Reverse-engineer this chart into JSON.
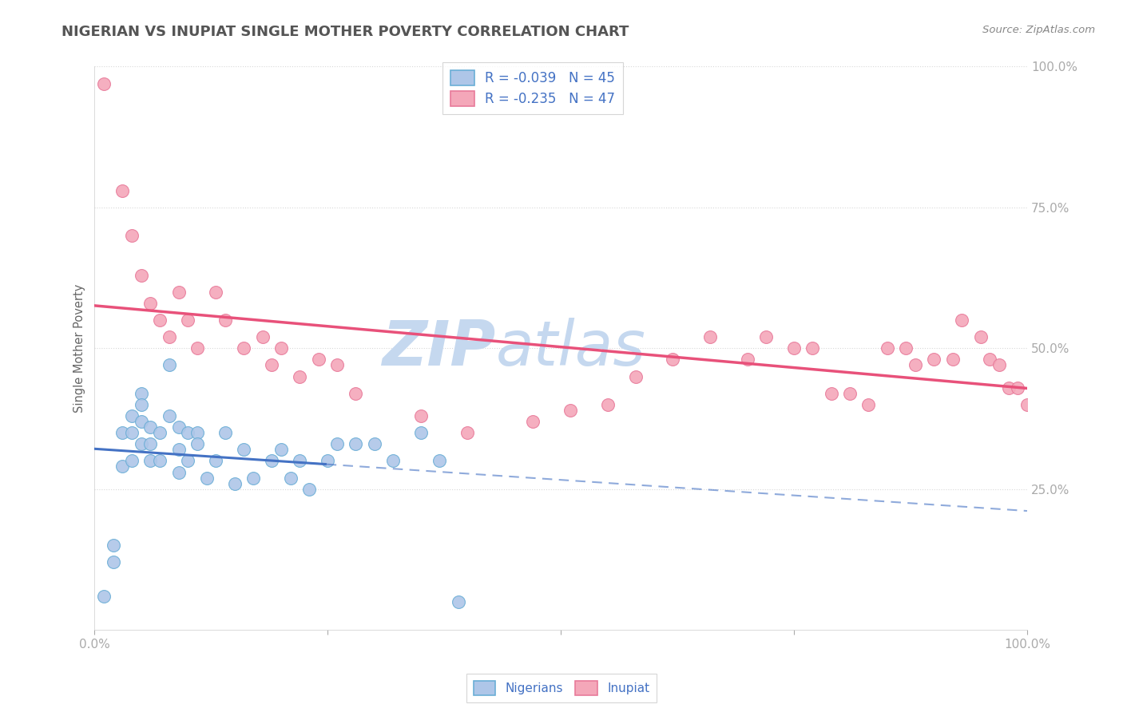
{
  "title": "NIGERIAN VS INUPIAT SINGLE MOTHER POVERTY CORRELATION CHART",
  "source": "Source: ZipAtlas.com",
  "ylabel": "Single Mother Poverty",
  "legend_r_nigerian": "-0.039",
  "legend_n_nigerian": "45",
  "legend_r_inupiat": "-0.235",
  "legend_n_inupiat": "47",
  "nigerian_color": "#aec6e8",
  "inupiat_color": "#f4a7b9",
  "nigerian_edge": "#6aaed6",
  "inupiat_edge": "#e87a9a",
  "trend_nigerian_color": "#4472c4",
  "trend_inupiat_color": "#e8517a",
  "background_color": "#ffffff",
  "grid_color": "#d8d8d8",
  "watermark_zip": "ZIP",
  "watermark_atlas": "atlas",
  "watermark_color_zip": "#c5d8ef",
  "watermark_color_atlas": "#c5d8ef",
  "title_color": "#555555",
  "axis_label_color": "#4472c4",
  "source_color": "#888888",
  "ylabel_color": "#666666",
  "nigerian_x": [
    1,
    2,
    2,
    3,
    3,
    4,
    4,
    4,
    5,
    5,
    5,
    5,
    6,
    6,
    6,
    7,
    7,
    8,
    8,
    9,
    9,
    9,
    10,
    10,
    11,
    11,
    12,
    13,
    14,
    15,
    16,
    17,
    19,
    20,
    21,
    22,
    23,
    25,
    26,
    28,
    30,
    32,
    35,
    37,
    39
  ],
  "nigerian_y": [
    6,
    15,
    12,
    35,
    29,
    38,
    35,
    30,
    42,
    40,
    37,
    33,
    36,
    33,
    30,
    35,
    30,
    47,
    38,
    36,
    32,
    28,
    35,
    30,
    35,
    33,
    27,
    30,
    35,
    26,
    32,
    27,
    30,
    32,
    27,
    30,
    25,
    30,
    33,
    33,
    33,
    30,
    35,
    30,
    5
  ],
  "inupiat_x": [
    1,
    3,
    4,
    5,
    6,
    7,
    8,
    9,
    10,
    11,
    13,
    14,
    16,
    18,
    19,
    20,
    22,
    24,
    26,
    28,
    35,
    40,
    47,
    51,
    55,
    58,
    62,
    66,
    70,
    72,
    75,
    77,
    79,
    81,
    83,
    85,
    87,
    88,
    90,
    92,
    93,
    95,
    96,
    97,
    98,
    99,
    100
  ],
  "inupiat_y": [
    97,
    78,
    70,
    63,
    58,
    55,
    52,
    60,
    55,
    50,
    60,
    55,
    50,
    52,
    47,
    50,
    45,
    48,
    47,
    42,
    38,
    35,
    37,
    39,
    40,
    45,
    48,
    52,
    48,
    52,
    50,
    50,
    42,
    42,
    40,
    50,
    50,
    47,
    48,
    48,
    55,
    52,
    48,
    47,
    43,
    43,
    40
  ],
  "xlim": [
    0,
    100
  ],
  "ylim": [
    0,
    100
  ]
}
